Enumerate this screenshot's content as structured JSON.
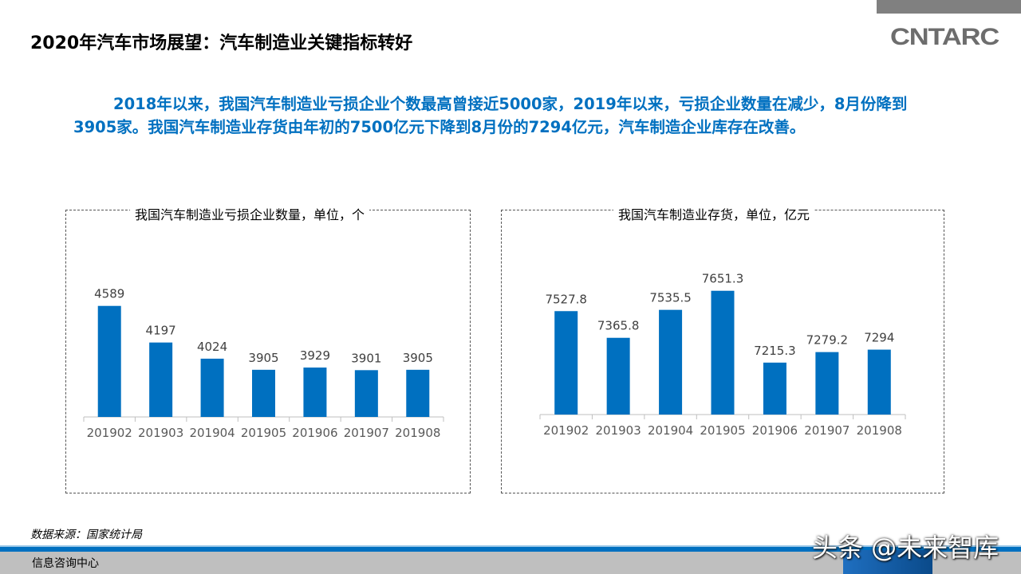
{
  "header": {
    "title": "2020年汽车市场展望：汽车制造业关键指标转好",
    "logo_text": "CNTARC"
  },
  "summary": "2018年以来，我国汽车制造业亏损企业个数最高曾接近5000家，2019年以来，亏损企业数量在减少，8月份降到3905家。我国汽车制造业存货由年初的7500亿元下降到8月份的7294亿元，汽车制造企业库存在改善。",
  "chart_data": [
    {
      "type": "bar",
      "title": "我国汽车制造业亏损企业数量，单位，个",
      "categories": [
        "201902",
        "201903",
        "201904",
        "201905",
        "201906",
        "201907",
        "201908"
      ],
      "values": [
        4589,
        4197,
        4024,
        3905,
        3929,
        3901,
        3905
      ],
      "labels": [
        "4589",
        "4197",
        "4024",
        "3905",
        "3929",
        "3901",
        "3905"
      ],
      "ylim": [
        3400,
        4800
      ],
      "grid": false,
      "color": "#0070c0"
    },
    {
      "type": "bar",
      "title": "我国汽车制造业存货，单位，亿元",
      "categories": [
        "201902",
        "201903",
        "201904",
        "201905",
        "201906",
        "201907",
        "201908"
      ],
      "values": [
        7527.8,
        7365.8,
        7535.5,
        7651.3,
        7215.3,
        7279.2,
        7294
      ],
      "labels": [
        "7527.8",
        "7365.8",
        "7535.5",
        "7651.3",
        "7215.3",
        "7279.2",
        "7294"
      ],
      "ylim": [
        6900,
        7800
      ],
      "grid": false,
      "color": "#0070c0"
    }
  ],
  "footer": {
    "source": "数据来源：国家统计局",
    "org": "信息咨询中心",
    "watermark": "头条 @未来智库"
  }
}
